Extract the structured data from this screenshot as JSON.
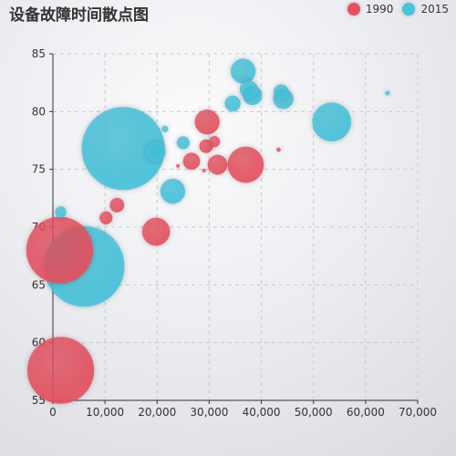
{
  "chart_data": {
    "type": "scatter",
    "title": "设备故障时间散点图",
    "xlabel": "",
    "ylabel": "",
    "xlim": [
      0,
      70000
    ],
    "ylim": [
      55,
      85
    ],
    "x_ticks": [
      0,
      10000,
      20000,
      30000,
      40000,
      50000,
      60000,
      70000
    ],
    "x_tick_labels": [
      "0",
      "10,000",
      "20,000",
      "30,000",
      "40,000",
      "50,000",
      "60,000",
      "70,000"
    ],
    "y_ticks": [
      55,
      60,
      65,
      70,
      75,
      80,
      85
    ],
    "y_tick_labels": [
      "55",
      "60",
      "65",
      "70",
      "75",
      "80",
      "85"
    ],
    "grid": true,
    "legend_position": "top-right",
    "size_note": "bubble size encodes a third magnitude value",
    "series": [
      {
        "name": "1990",
        "color": "#e8505f",
        "points": [
          {
            "x": 1500,
            "y": 57.6,
            "size": 1100
          },
          {
            "x": 1300,
            "y": 68.0,
            "size": 1100
          },
          {
            "x": 10200,
            "y": 70.8,
            "size": 40
          },
          {
            "x": 12300,
            "y": 71.9,
            "size": 50
          },
          {
            "x": 19800,
            "y": 69.6,
            "size": 190
          },
          {
            "x": 24000,
            "y": 75.3,
            "size": 3
          },
          {
            "x": 26600,
            "y": 75.7,
            "size": 70
          },
          {
            "x": 29000,
            "y": 74.9,
            "size": 3
          },
          {
            "x": 29400,
            "y": 77.0,
            "size": 45
          },
          {
            "x": 29600,
            "y": 79.1,
            "size": 150
          },
          {
            "x": 31000,
            "y": 77.4,
            "size": 30
          },
          {
            "x": 31600,
            "y": 75.4,
            "size": 95
          },
          {
            "x": 37000,
            "y": 75.4,
            "size": 320
          },
          {
            "x": 43300,
            "y": 76.7,
            "size": 4
          }
        ]
      },
      {
        "name": "2015",
        "color": "#45c4dc",
        "points": [
          {
            "x": 1500,
            "y": 71.3,
            "size": 30
          },
          {
            "x": 6000,
            "y": 66.6,
            "size": 1600
          },
          {
            "x": 13500,
            "y": 76.8,
            "size": 1700
          },
          {
            "x": 19700,
            "y": 76.5,
            "size": 95
          },
          {
            "x": 21500,
            "y": 78.5,
            "size": 10
          },
          {
            "x": 23000,
            "y": 73.1,
            "size": 150
          },
          {
            "x": 25000,
            "y": 77.3,
            "size": 40
          },
          {
            "x": 34500,
            "y": 80.7,
            "size": 60
          },
          {
            "x": 36500,
            "y": 83.5,
            "size": 150
          },
          {
            "x": 37600,
            "y": 81.9,
            "size": 80
          },
          {
            "x": 38300,
            "y": 81.4,
            "size": 90
          },
          {
            "x": 43800,
            "y": 81.7,
            "size": 55
          },
          {
            "x": 44200,
            "y": 81.1,
            "size": 100
          },
          {
            "x": 53500,
            "y": 79.1,
            "size": 370
          },
          {
            "x": 64200,
            "y": 81.6,
            "size": 5
          }
        ]
      }
    ]
  }
}
